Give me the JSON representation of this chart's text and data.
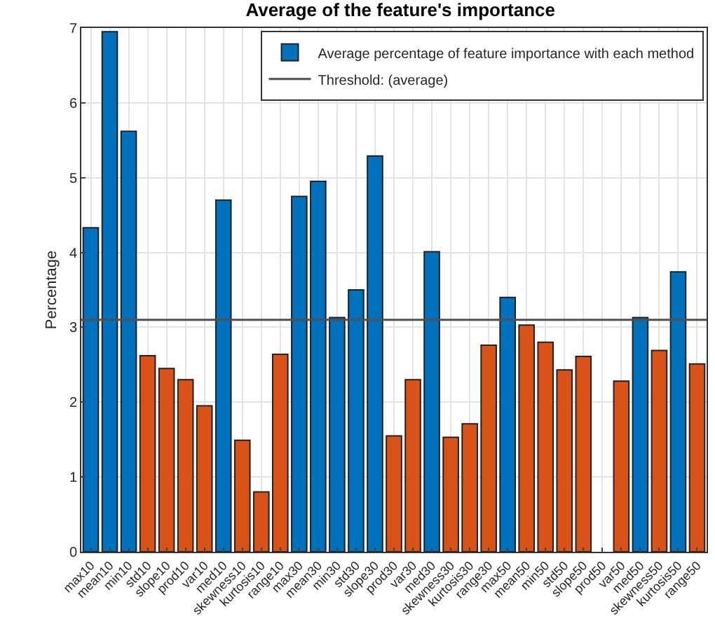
{
  "chart_data": {
    "type": "bar",
    "title": "Average of the feature's importance",
    "ylabel": "Percentage",
    "categories": [
      "max10",
      "mean10",
      "min10",
      "std10",
      "slope10",
      "prod10",
      "var10",
      "med10",
      "skewness10",
      "kurtosis10",
      "range10",
      "max30",
      "mean30",
      "min30",
      "std30",
      "slope30",
      "prod30",
      "var30",
      "med30",
      "skewness30",
      "kurtosis30",
      "range30",
      "max50",
      "mean50",
      "min50",
      "std50",
      "slope50",
      "prod50",
      "var50",
      "med50",
      "skewness50",
      "kurtosis50",
      "range50"
    ],
    "series": [
      {
        "name": "Average percentage of feature importance with each method",
        "colors": [
          "#0072bd",
          "#0072bd",
          "#0072bd",
          "#d95319",
          "#d95319",
          "#d95319",
          "#d95319",
          "#0072bd",
          "#d95319",
          "#d95319",
          "#d95319",
          "#0072bd",
          "#0072bd",
          "#0072bd",
          "#0072bd",
          "#0072bd",
          "#d95319",
          "#d95319",
          "#0072bd",
          "#d95319",
          "#d95319",
          "#d95319",
          "#0072bd",
          "#d95319",
          "#d95319",
          "#d95319",
          "#d95319",
          null,
          "#d95319",
          "#0072bd",
          "#d95319",
          "#0072bd",
          "#d95319"
        ],
        "values": [
          4.33,
          6.95,
          5.62,
          2.62,
          2.45,
          2.3,
          1.95,
          4.7,
          1.49,
          0.8,
          2.64,
          4.75,
          4.95,
          3.13,
          3.5,
          5.29,
          1.55,
          2.3,
          4.01,
          1.53,
          1.71,
          2.76,
          3.4,
          3.03,
          2.8,
          2.43,
          2.61,
          null,
          2.28,
          3.13,
          2.69,
          3.74,
          2.51
        ]
      }
    ],
    "ref_lines": [
      {
        "axis": "y",
        "value": 3.1,
        "label": "Threshold: (average)",
        "color": "#505050",
        "line_style": "solid"
      }
    ],
    "ylim": [
      0,
      7
    ],
    "yticks": [
      0,
      1,
      2,
      3,
      4,
      5,
      6,
      7
    ],
    "grid": true,
    "legend": "top right"
  }
}
